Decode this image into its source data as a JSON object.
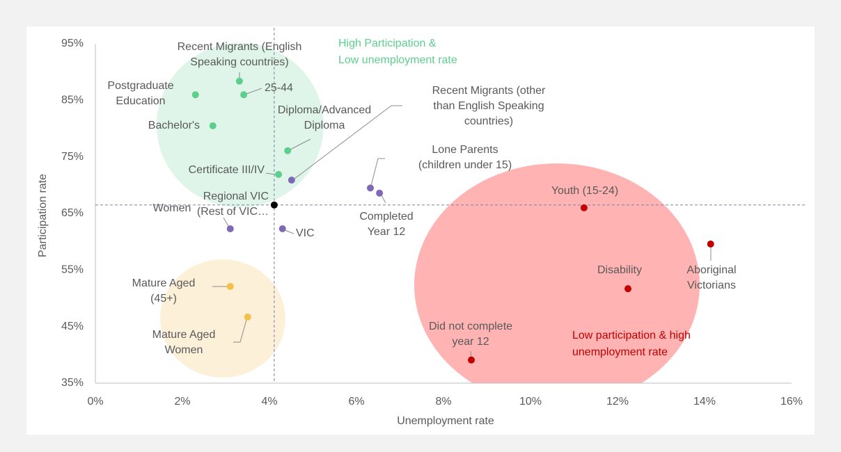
{
  "chart_data": {
    "type": "scatter",
    "xlabel": "Unemployment rate",
    "ylabel": "Participation rate",
    "xlim": [
      0,
      16
    ],
    "ylim": [
      35,
      95
    ],
    "xticks": [
      {
        "value": 0,
        "label": "0%"
      },
      {
        "value": 2,
        "label": "2%"
      },
      {
        "value": 4,
        "label": "4%"
      },
      {
        "value": 6,
        "label": "6%"
      },
      {
        "value": 8,
        "label": "8%"
      },
      {
        "value": 10,
        "label": "10%"
      },
      {
        "value": 12,
        "label": "12%"
      },
      {
        "value": 14,
        "label": "14%"
      },
      {
        "value": 16,
        "label": "16%"
      }
    ],
    "yticks": [
      {
        "value": 35,
        "label": "35%"
      },
      {
        "value": 45,
        "label": "45%"
      },
      {
        "value": 55,
        "label": "55%"
      },
      {
        "value": 65,
        "label": "65%"
      },
      {
        "value": 75,
        "label": "75%"
      },
      {
        "value": 85,
        "label": "85%"
      },
      {
        "value": 95,
        "label": "95%"
      }
    ],
    "series": [
      {
        "color": "#5ccf8e",
        "x": [
          3.31,
          3.41,
          2.3,
          2.7,
          4.42,
          4.21
        ],
        "values": [
          88.4,
          86.0,
          86.0,
          80.5,
          76.1,
          71.9
        ],
        "labels": [
          [
            "Recent Migrants (English",
            "Speaking countries)"
          ],
          [
            "25-44"
          ],
          [
            "Postgraduate",
            "Education"
          ],
          [
            "Bachelor's"
          ],
          [
            "Diploma/Advanced",
            "Diploma"
          ],
          [
            "Certificate III/IV"
          ]
        ]
      },
      {
        "color": "#7f68b8",
        "x": [
          4.51,
          6.32,
          6.53,
          3.1,
          4.3
        ],
        "values": [
          70.9,
          69.5,
          68.6,
          62.3,
          62.3
        ],
        "labels": [
          [
            "Recent Migrants (other",
            "than English Speaking",
            "countries)"
          ],
          [
            "Lone Parents",
            "(children under 15)"
          ],
          [
            "Completed",
            "Year 12"
          ],
          [
            "Regional VIC",
            "(Rest of VIC…"
          ],
          [
            "Women"
          ]
        ]
      },
      {
        "color": "#000000",
        "x": [
          4.11
        ],
        "values": [
          66.5
        ],
        "labels": [
          [
            "VIC"
          ]
        ],
        "reference_lines": true
      },
      {
        "color": "#c00000",
        "x": [
          11.23,
          14.14,
          12.24,
          8.64
        ],
        "values": [
          66.0,
          59.6,
          51.7,
          39.1
        ],
        "labels": [
          [
            "Youth (15-24)"
          ],
          [
            "Aboriginal",
            "Victorians"
          ],
          [
            "Disability"
          ],
          [
            "Did not complete",
            "year 12"
          ]
        ]
      },
      {
        "color": "#f5c04a",
        "x": [
          3.1,
          3.5
        ],
        "values": [
          52.1,
          46.7
        ],
        "labels": [
          [
            "Mature Aged",
            "(45+)"
          ],
          [
            "Mature Aged",
            "Women"
          ]
        ]
      }
    ],
    "annotations": [
      {
        "text": [
          "High Participation &",
          "Low unemployment rate"
        ],
        "color": "#5ccf8e"
      },
      {
        "text": [
          "Low participation & high",
          "unemployment rate"
        ],
        "color": "#c00000"
      }
    ]
  }
}
